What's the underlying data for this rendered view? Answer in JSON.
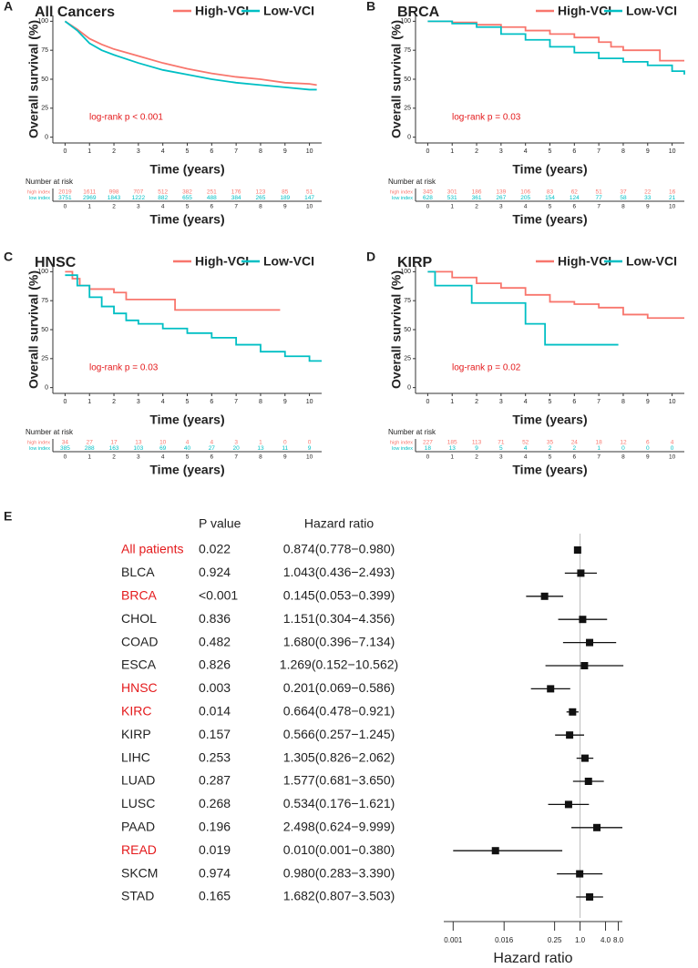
{
  "chart_data": [
    {
      "type": "line",
      "panel_label": "A",
      "title": "All Cancers",
      "xlabel": "Time (years)",
      "ylabel": "Overall survival (%)",
      "annotation": "log-rank p < 0.001",
      "annotation_color": "#e41a1c",
      "step": false,
      "xlim": [
        -0.5,
        10.5
      ],
      "ylim": [
        -5,
        105
      ],
      "xticks": [
        0,
        1,
        2,
        3,
        4,
        5,
        6,
        7,
        8,
        9,
        10
      ],
      "yticks": [
        0,
        25,
        50,
        75,
        100
      ],
      "series": [
        {
          "name": "High-VCI",
          "color": "#F8766D",
          "x": [
            0,
            0.5,
            1,
            1.5,
            2,
            3,
            4,
            5,
            6,
            7,
            8,
            9,
            10,
            10.3
          ],
          "values": [
            100,
            93,
            85,
            80,
            76,
            70,
            64,
            59,
            55,
            52,
            50,
            47,
            46,
            45
          ]
        },
        {
          "name": "Low-VCI",
          "color": "#00BFC4",
          "x": [
            0,
            0.5,
            1,
            1.5,
            2,
            3,
            4,
            5,
            6,
            7,
            8,
            9,
            10,
            10.3
          ],
          "values": [
            100,
            92,
            81,
            75,
            71,
            64,
            58,
            54,
            50,
            47,
            45,
            43,
            41,
            41
          ]
        }
      ],
      "risk_table": {
        "title": "Number at risk",
        "xlabel": "Time (years)",
        "rows": [
          {
            "name": "high index",
            "color": "#F8766D",
            "values": [
              2019,
              1611,
              998,
              707,
              512,
              382,
              251,
              176,
              123,
              85,
              51
            ]
          },
          {
            "name": "low index",
            "color": "#00BFC4",
            "values": [
              3751,
              2969,
              1843,
              1222,
              882,
              655,
              488,
              384,
              265,
              189,
              147
            ]
          }
        ]
      }
    },
    {
      "type": "line",
      "panel_label": "B",
      "title": "BRCA",
      "xlabel": "Time (years)",
      "ylabel": "Overall survival (%)",
      "annotation": "log-rank p = 0.03",
      "annotation_color": "#e41a1c",
      "step": true,
      "xlim": [
        -0.5,
        10.5
      ],
      "ylim": [
        -5,
        105
      ],
      "xticks": [
        0,
        1,
        2,
        3,
        4,
        5,
        6,
        7,
        8,
        9,
        10
      ],
      "yticks": [
        0,
        25,
        50,
        75,
        100
      ],
      "series": [
        {
          "name": "High-VCI",
          "color": "#F8766D",
          "x": [
            0,
            1,
            2,
            3,
            4,
            5,
            6,
            7,
            7.5,
            8,
            9,
            9.5,
            10.5
          ],
          "values": [
            100,
            99,
            97,
            95,
            92,
            89,
            86,
            82,
            78,
            75,
            75,
            66,
            66
          ]
        },
        {
          "name": "Low-VCI",
          "color": "#00BFC4",
          "x": [
            0,
            1,
            2,
            3,
            4,
            5,
            6,
            7,
            8,
            9,
            10,
            10.5
          ],
          "values": [
            100,
            98,
            95,
            89,
            84,
            78,
            73,
            68,
            65,
            62,
            57,
            54
          ]
        }
      ],
      "risk_table": {
        "title": "Number at risk",
        "xlabel": "Time (years)",
        "rows": [
          {
            "name": "high index",
            "color": "#F8766D",
            "values": [
              345,
              301,
              186,
              139,
              106,
              83,
              62,
              51,
              37,
              22,
              16
            ]
          },
          {
            "name": "low index",
            "color": "#00BFC4",
            "values": [
              628,
              531,
              361,
              267,
              205,
              154,
              124,
              77,
              58,
              33,
              21
            ]
          }
        ]
      }
    },
    {
      "type": "line",
      "panel_label": "C",
      "title": "HNSC",
      "xlabel": "Time (years)",
      "ylabel": "Overall survival (%)",
      "annotation": "log-rank p = 0.03",
      "annotation_color": "#e41a1c",
      "step": true,
      "xlim": [
        -0.5,
        10.5
      ],
      "ylim": [
        -5,
        105
      ],
      "xticks": [
        0,
        1,
        2,
        3,
        4,
        5,
        6,
        7,
        8,
        9,
        10
      ],
      "yticks": [
        0,
        25,
        50,
        75,
        100
      ],
      "series": [
        {
          "name": "High-VCI",
          "color": "#F8766D",
          "x": [
            0,
            0.3,
            0.6,
            1,
            1.5,
            2,
            2.5,
            4.5,
            8.8
          ],
          "values": [
            100,
            94,
            88,
            85,
            85,
            82,
            76,
            67,
            67
          ]
        },
        {
          "name": "Low-VCI",
          "color": "#00BFC4",
          "x": [
            0,
            0.5,
            1,
            1.5,
            2,
            2.5,
            3,
            4,
            5,
            6,
            7,
            8,
            9,
            10,
            10.5
          ],
          "values": [
            97,
            88,
            78,
            70,
            64,
            58,
            55,
            51,
            47,
            43,
            37,
            31,
            27,
            23,
            23
          ]
        }
      ],
      "risk_table": {
        "title": "Number at risk",
        "xlabel": "Time (years)",
        "rows": [
          {
            "name": "high index",
            "color": "#F8766D",
            "values": [
              34,
              27,
              17,
              13,
              10,
              4,
              4,
              3,
              1,
              0,
              0
            ]
          },
          {
            "name": "low index",
            "color": "#00BFC4",
            "values": [
              385,
              288,
              163,
              103,
              69,
              40,
              27,
              20,
              13,
              11,
              9
            ]
          }
        ]
      }
    },
    {
      "type": "line",
      "panel_label": "D",
      "title": "KIRP",
      "xlabel": "Time (years)",
      "ylabel": "Overall survival (%)",
      "annotation": "log-rank p = 0.02",
      "annotation_color": "#e41a1c",
      "step": true,
      "xlim": [
        -0.5,
        10.5
      ],
      "ylim": [
        -5,
        105
      ],
      "xticks": [
        0,
        1,
        2,
        3,
        4,
        5,
        6,
        7,
        8,
        9,
        10
      ],
      "yticks": [
        0,
        25,
        50,
        75,
        100
      ],
      "series": [
        {
          "name": "High-VCI",
          "color": "#F8766D",
          "x": [
            0,
            1,
            2,
            3,
            4,
            5,
            6,
            7,
            8,
            9,
            10.5
          ],
          "values": [
            100,
            95,
            90,
            86,
            80,
            74,
            72,
            69,
            63,
            60,
            60
          ]
        },
        {
          "name": "Low-VCI",
          "color": "#00BFC4",
          "x": [
            0,
            0.3,
            1,
            1.8,
            2,
            4,
            4.2,
            4.8,
            7.8
          ],
          "values": [
            100,
            88,
            88,
            73,
            73,
            55,
            55,
            37,
            37
          ]
        }
      ],
      "risk_table": {
        "title": "Number at risk",
        "xlabel": "Time (years)",
        "rows": [
          {
            "name": "high index",
            "color": "#F8766D",
            "values": [
              227,
              185,
              113,
              71,
              52,
              35,
              24,
              18,
              12,
              6,
              4
            ]
          },
          {
            "name": "low index",
            "color": "#00BFC4",
            "values": [
              18,
              13,
              9,
              5,
              4,
              2,
              2,
              1,
              0,
              0,
              0
            ]
          }
        ]
      }
    },
    {
      "type": "forest",
      "panel_label": "E",
      "p_header": "P value",
      "hr_header": "Hazard ratio",
      "xlabel": "Hazard ratio",
      "log_scale": true,
      "reference": 1,
      "color": "#111111",
      "highlight": [
        0,
        2,
        6,
        7,
        13
      ],
      "highlight_color": "#e41a1c",
      "xlim": [
        0.0006,
        10
      ],
      "xticks": [
        0.001,
        0.016,
        0.25,
        {
          "value": 1,
          "label": "1.0"
        },
        {
          "value": 4,
          "label": "4.0"
        },
        {
          "value": 8,
          "label": "8.0"
        }
      ],
      "categories": [
        "All patients",
        "BLCA",
        "BRCA",
        "CHOL",
        "COAD",
        "ESCA",
        "HNSC",
        "KIRC",
        "KIRP",
        "LIHC",
        "LUAD",
        "LUSC",
        "PAAD",
        "READ",
        "SKCM",
        "STAD"
      ],
      "p_values": [
        "0.022",
        "0.924",
        "<0.001",
        "0.836",
        "0.482",
        "0.826",
        "0.003",
        "0.014",
        "0.157",
        "0.253",
        "0.287",
        "0.268",
        "0.196",
        "0.019",
        "0.974",
        "0.165"
      ],
      "values": [
        0.874,
        1.043,
        0.145,
        1.151,
        1.68,
        1.269,
        0.201,
        0.664,
        0.566,
        1.305,
        1.577,
        0.534,
        2.498,
        0.01,
        0.98,
        1.682
      ],
      "lower": [
        0.778,
        0.436,
        0.053,
        0.304,
        0.396,
        0.152,
        0.069,
        0.478,
        0.257,
        0.826,
        0.681,
        0.176,
        0.624,
        0.001,
        0.283,
        0.807
      ],
      "upper": [
        0.98,
        2.493,
        0.399,
        4.356,
        7.134,
        10.562,
        0.586,
        0.921,
        1.245,
        2.062,
        3.65,
        1.621,
        9.999,
        0.38,
        3.39,
        3.503
      ],
      "value_labels": [
        "0.874(0.778−0.980)",
        "1.043(0.436−2.493)",
        "0.145(0.053−0.399)",
        "1.151(0.304−4.356)",
        "1.680(0.396−7.134)",
        "1.269(0.152−10.562)",
        "0.201(0.069−0.586)",
        "0.664(0.478−0.921)",
        "0.566(0.257−1.245)",
        "1.305(0.826−2.062)",
        "1.577(0.681−3.650)",
        "0.534(0.176−1.621)",
        "2.498(0.624−9.999)",
        "0.010(0.001−0.380)",
        "0.980(0.283−3.390)",
        "1.682(0.807−3.503)"
      ]
    }
  ]
}
